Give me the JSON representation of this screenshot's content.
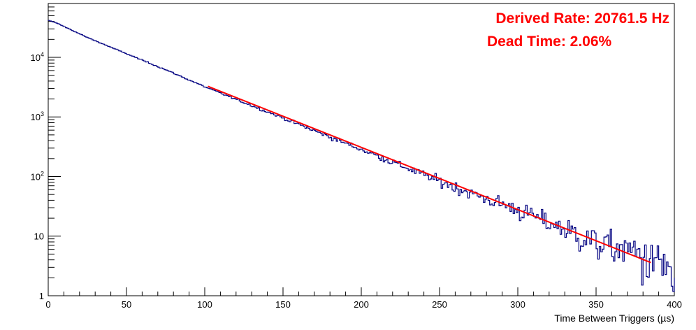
{
  "chart_data": {
    "type": "line",
    "title": "",
    "xlabel": "Time Between Triggers (µs)",
    "ylabel": "",
    "xlim": [
      0,
      400
    ],
    "ylim": [
      1,
      80000
    ],
    "yscale": "log",
    "grid": false,
    "x_ticks": [
      "0",
      "50",
      "100",
      "150",
      "200",
      "250",
      "300",
      "350",
      "400"
    ],
    "y_ticks": [
      {
        "value": 1,
        "label": "1"
      },
      {
        "value": 10,
        "label": "10"
      },
      {
        "value": 100,
        "label": "10^2"
      },
      {
        "value": 1000,
        "label": "10^3"
      },
      {
        "value": 10000,
        "label": "10^4"
      }
    ],
    "series": [
      {
        "kind": "histogram",
        "color": "#000080",
        "bin_width": 1,
        "x": [
          0,
          5,
          25,
          50,
          75,
          100,
          125,
          150,
          175,
          200,
          225,
          250,
          275,
          300,
          325,
          350,
          375,
          390,
          395,
          398,
          399,
          400
        ],
        "y": [
          42000,
          38000,
          21500,
          11500,
          6200,
          3200,
          1750,
          960,
          520,
          285,
          155,
          84,
          47,
          28,
          15,
          8,
          5.5,
          3.6,
          3.3,
          3.0,
          0.7,
          2.0
        ]
      },
      {
        "kind": "fit",
        "color": "#ff0000",
        "x": [
          102,
          385
        ],
        "y": [
          3260,
          3.6
        ]
      }
    ],
    "annotations": [
      {
        "text": "Derived Rate: 20761.5 Hz",
        "color": "#ff0000"
      },
      {
        "text": "Dead Time: 2.06%",
        "color": "#ff0000"
      }
    ]
  }
}
